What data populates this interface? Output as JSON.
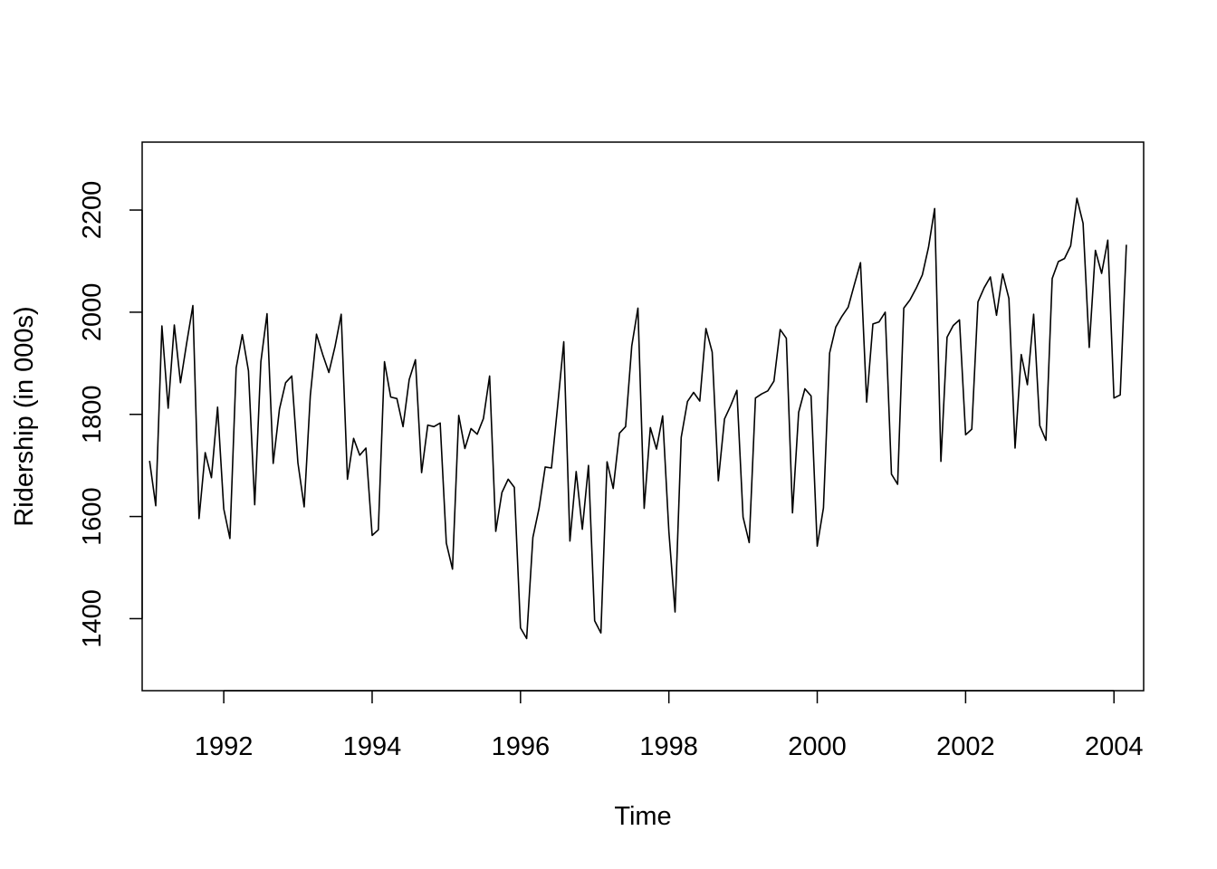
{
  "chart_data": {
    "type": "line",
    "title": "",
    "xlabel": "Time",
    "ylabel": "Ridership (in 000s)",
    "xlim": [
      1990.9,
      2004.4
    ],
    "ylim": [
      1259,
      2333
    ],
    "x_ticks": [
      1992,
      1994,
      1996,
      1998,
      2000,
      2002,
      2004
    ],
    "y_ticks": [
      1400,
      1600,
      1800,
      2000,
      2200
    ],
    "grid": false,
    "legend": "none",
    "line_color": "#000000",
    "series": [
      {
        "x_start": 1991.0,
        "x_step": 0.0833333,
        "values": [
          1709,
          1621,
          1973,
          1812,
          1975,
          1862,
          1940,
          2013,
          1596,
          1725,
          1676,
          1814,
          1615,
          1557,
          1891,
          1956,
          1885,
          1623,
          1903,
          1997,
          1704,
          1810,
          1862,
          1875,
          1705,
          1619,
          1837,
          1957,
          1917,
          1882,
          1933,
          1996,
          1673,
          1753,
          1720,
          1734,
          1563,
          1574,
          1903,
          1834,
          1831,
          1776,
          1868,
          1907,
          1686,
          1779,
          1776,
          1783,
          1548,
          1497,
          1798,
          1733,
          1772,
          1761,
          1792,
          1875,
          1571,
          1647,
          1673,
          1657,
          1382,
          1361,
          1559,
          1616,
          1697,
          1695,
          1816,
          1942,
          1552,
          1688,
          1575,
          1700,
          1396,
          1372,
          1707,
          1655,
          1763,
          1776,
          1934,
          2008,
          1616,
          1774,
          1732,
          1797,
          1570,
          1413,
          1755,
          1825,
          1843,
          1826,
          1968,
          1922,
          1670,
          1791,
          1817,
          1847,
          1599,
          1549,
          1832,
          1840,
          1846,
          1865,
          1966,
          1949,
          1607,
          1804,
          1850,
          1836,
          1542,
          1617,
          1920,
          1971,
          1992,
          2010,
          2054,
          2097,
          1824,
          1977,
          1981,
          2000,
          1683,
          1663,
          2008,
          2024,
          2047,
          2073,
          2127,
          2203,
          1708,
          1951,
          1974,
          1985,
          1760,
          1771,
          2020,
          2048,
          2069,
          1994,
          2075,
          2027,
          1734,
          1917,
          1858,
          1996,
          1778,
          1749,
          2066,
          2099,
          2105,
          2130,
          2223,
          2174,
          1931,
          2121,
          2076,
          2141,
          1832,
          1838,
          2132
        ]
      }
    ]
  }
}
